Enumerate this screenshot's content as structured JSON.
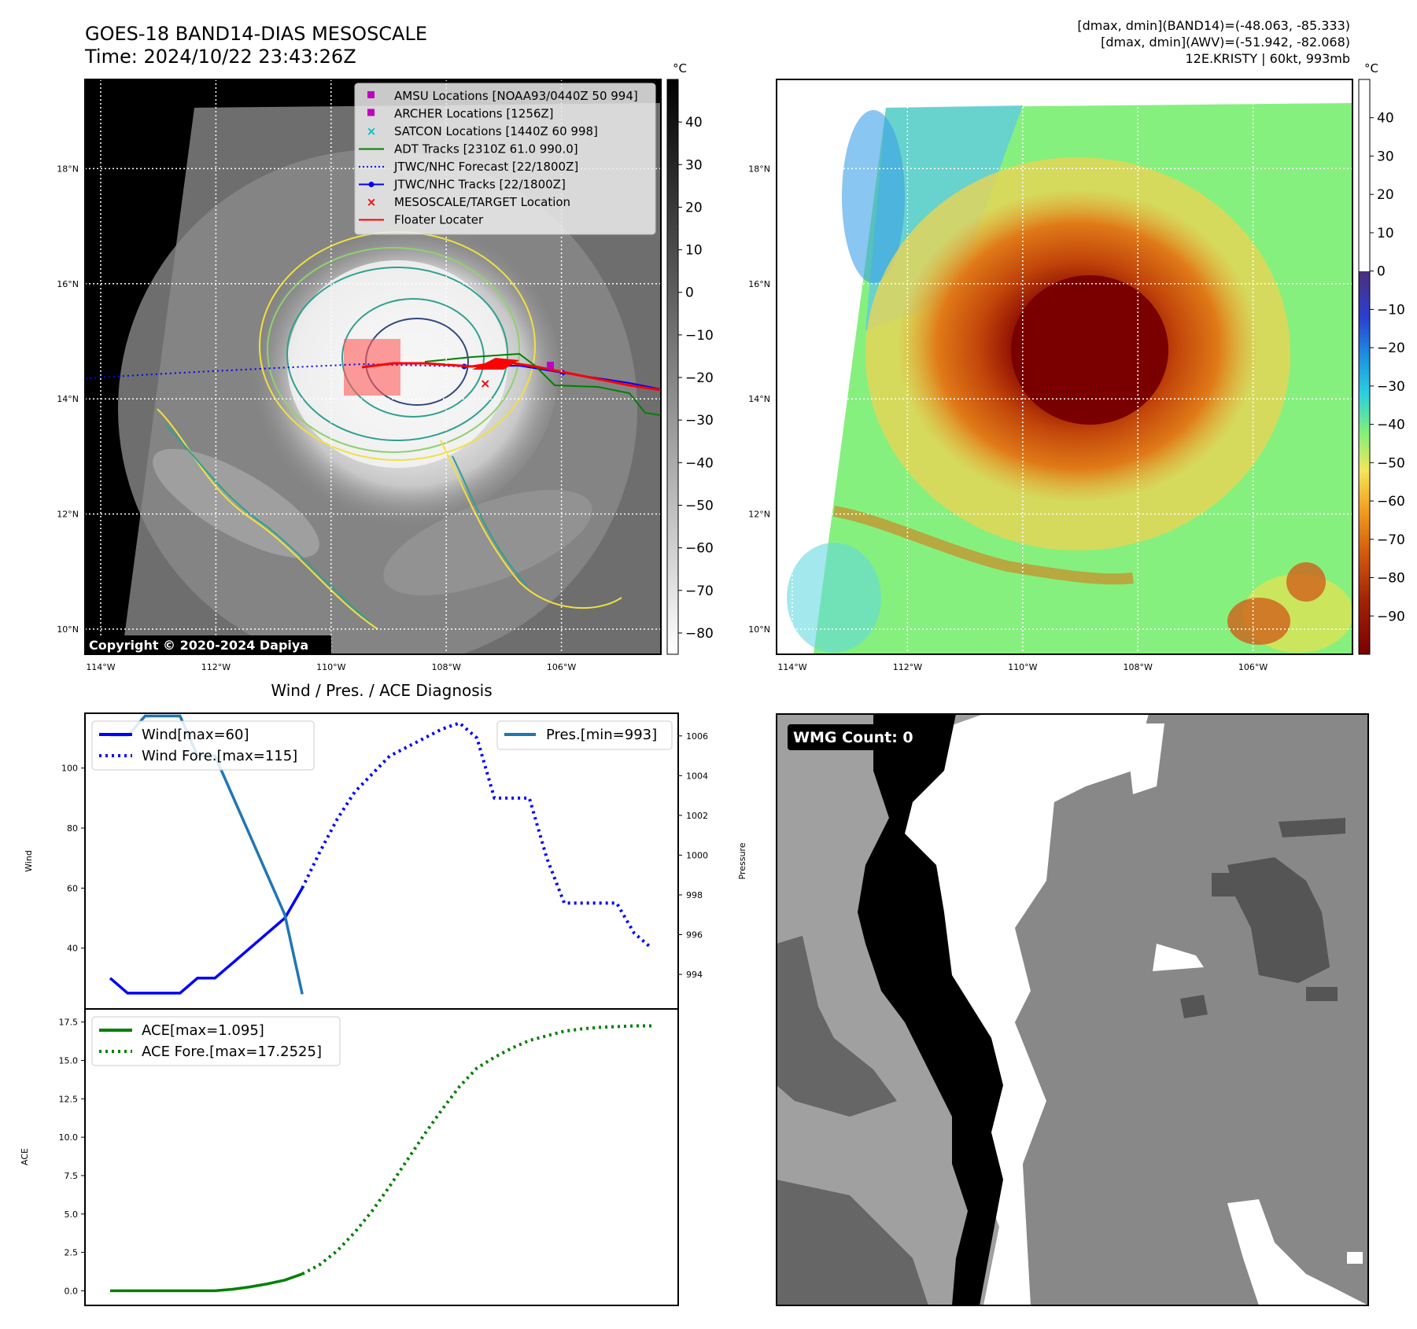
{
  "header": {
    "title_line1": "GOES-18 BAND14-DIAS MESOSCALE",
    "title_line2": "Time: 2024/10/22 23:43:26Z",
    "right_line1": "[dmax, dmin](BAND14)=(-48.063, -85.333)",
    "right_line2": "[dmax, dmin](AWV)=(-51.942, -82.068)",
    "right_line3": "12E.KRISTY | 60kt, 993mb"
  },
  "map": {
    "lat_labels": [
      "18°N",
      "16°N",
      "14°N",
      "12°N",
      "10°N"
    ],
    "lat_values": [
      18,
      16,
      14,
      12,
      10
    ],
    "lon_labels": [
      "114°W",
      "112°W",
      "110°W",
      "108°W",
      "106°W"
    ],
    "lon_values": [
      -114,
      -112,
      -110,
      -108,
      -106
    ],
    "copyright": "Copyright © 2020-2024 Dapiya",
    "legend": [
      {
        "label": "AMSU Locations [NOAA93/0440Z 50 994]",
        "marker": "square",
        "color": "#c000c0"
      },
      {
        "label": "ARCHER Locations [1256Z]",
        "marker": "square",
        "color": "#c000c0"
      },
      {
        "label": "SATCON Locations [1440Z 60 998]",
        "marker": "x",
        "color": "#00c0c0"
      },
      {
        "label": "ADT Tracks [2310Z 61.0 990.0]",
        "marker": "line",
        "color": "#008000"
      },
      {
        "label": "JTWC/NHC Forecast [22/1800Z]",
        "marker": "dotted",
        "color": "#0000ff"
      },
      {
        "label": "JTWC/NHC Tracks [22/1800Z]",
        "marker": "line-dot",
        "color": "#0000ff"
      },
      {
        "label": "MESOSCALE/TARGET Location",
        "marker": "x",
        "color": "#ff0000"
      },
      {
        "label": "Floater Locater",
        "marker": "line",
        "color": "#ff0000"
      }
    ]
  },
  "colorbar_gray": {
    "unit": "°C",
    "ticks": [
      "40",
      "30",
      "20",
      "10",
      "0",
      "−10",
      "−20",
      "−30",
      "−40",
      "−50",
      "−60",
      "−70",
      "−80"
    ],
    "tick_values": [
      40,
      30,
      20,
      10,
      0,
      -10,
      -20,
      -30,
      -40,
      -50,
      -60,
      -70,
      -80
    ],
    "range": [
      50,
      -85
    ]
  },
  "colorbar_color": {
    "unit": "°C",
    "ticks": [
      "40",
      "30",
      "20",
      "10",
      "0",
      "−10",
      "−20",
      "−30",
      "−40",
      "−50",
      "−60",
      "−70",
      "−80",
      "−90"
    ],
    "tick_values": [
      40,
      30,
      20,
      10,
      0,
      -10,
      -20,
      -30,
      -40,
      -50,
      -60,
      -70,
      -80,
      -90
    ],
    "range": [
      50,
      -100
    ]
  },
  "diagnosis": {
    "title": "Wind / Pres. / ACE Diagnosis",
    "wind_ylabel": "Wind",
    "pres_ylabel": "Pressure",
    "ace_ylabel": "ACE"
  },
  "wmg": {
    "label": "WMG Count: 0"
  },
  "colors": {
    "wind": "#0000ff",
    "pressure": "#1f77b4",
    "ace": "#008000",
    "floater": "#ff0000",
    "adt": "#008000"
  },
  "chart_data": [
    {
      "type": "line",
      "title": "Wind / Pres. / ACE Diagnosis",
      "ylabel": "Wind",
      "ylim": [
        20,
        118
      ],
      "y_ticks": [
        40,
        60,
        80,
        100
      ],
      "series": [
        {
          "name": "Wind[max=60]",
          "style": "solid",
          "color": "#0000ff",
          "x": [
            0,
            1,
            2,
            3,
            4,
            5,
            6,
            7,
            8,
            9,
            10,
            11
          ],
          "y": [
            30,
            25,
            25,
            25,
            25,
            30,
            30,
            35,
            40,
            45,
            50,
            60
          ]
        },
        {
          "name": "Wind Fore.[max=115]",
          "style": "dotted",
          "color": "#0000ff",
          "x": [
            11,
            12,
            13,
            14,
            15,
            16,
            17,
            18,
            19,
            20,
            21,
            22,
            23,
            24,
            25,
            26,
            27,
            28,
            29,
            30,
            31
          ],
          "y": [
            60,
            72,
            83,
            92,
            98,
            104,
            107,
            110,
            113,
            115,
            110,
            90,
            90,
            90,
            70,
            55,
            55,
            55,
            55,
            45,
            40
          ]
        }
      ]
    },
    {
      "type": "line",
      "ylabel": "Pressure",
      "ylim": [
        992.3,
        1007.1
      ],
      "y_ticks": [
        994,
        996,
        998,
        1000,
        1002,
        1004,
        1006
      ],
      "series": [
        {
          "name": "Pres.[min=993]",
          "style": "solid",
          "color": "#1f77b4",
          "x": [
            0,
            1,
            2,
            3,
            4,
            5,
            6,
            7,
            8,
            9,
            10,
            11
          ],
          "y": [
            1006,
            1006,
            1007,
            1007,
            1007,
            1005,
            1005,
            1003,
            1001,
            999,
            997,
            993
          ]
        }
      ]
    },
    {
      "type": "line",
      "ylabel": "ACE",
      "ylim": [
        -0.9,
        18.3
      ],
      "y_ticks": [
        0.0,
        2.5,
        5.0,
        7.5,
        10.0,
        12.5,
        15.0,
        17.5
      ],
      "series": [
        {
          "name": "ACE[max=1.095]",
          "style": "solid",
          "color": "#008000",
          "x": [
            0,
            1,
            2,
            3,
            4,
            5,
            6,
            7,
            8,
            9,
            10,
            11
          ],
          "y": [
            0,
            0,
            0,
            0,
            0,
            0,
            0,
            0.1,
            0.25,
            0.45,
            0.7,
            1.095
          ]
        },
        {
          "name": "ACE Fore.[max=17.2525]",
          "style": "dotted",
          "color": "#008000",
          "x": [
            11,
            12,
            13,
            14,
            15,
            16,
            17,
            18,
            19,
            20,
            21,
            22,
            23,
            24,
            25,
            26,
            27,
            28,
            29,
            30,
            31
          ],
          "y": [
            1.095,
            1.7,
            2.6,
            3.8,
            5.2,
            6.8,
            8.5,
            10.2,
            11.8,
            13.3,
            14.5,
            15.2,
            15.8,
            16.3,
            16.6,
            16.9,
            17.05,
            17.15,
            17.2,
            17.25,
            17.2525
          ]
        }
      ]
    }
  ]
}
